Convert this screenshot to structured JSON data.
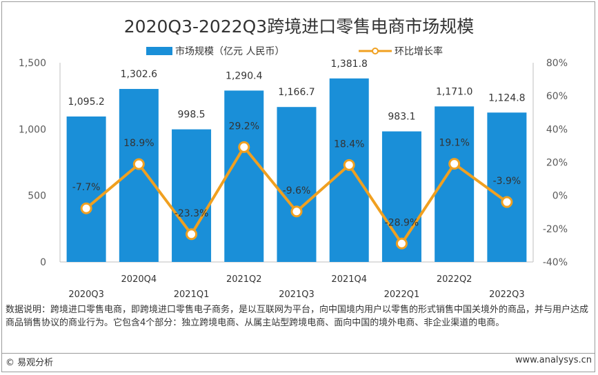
{
  "chart_data": {
    "type": "bar",
    "title": "2020Q3-2022Q3跨境进口零售电商市场规模",
    "categories": [
      "2020Q3",
      "2020Q4",
      "2021Q1",
      "2021Q2",
      "2021Q3",
      "2021Q4",
      "2022Q1",
      "2022Q2",
      "2022Q3"
    ],
    "series": [
      {
        "name": "市场规模（亿元 人民币）",
        "type": "bar",
        "axis": "left",
        "color": "#1a8fd8",
        "values": [
          1095.2,
          1302.6,
          998.5,
          1290.4,
          1166.7,
          1381.8,
          983.1,
          1171.0,
          1124.8
        ],
        "labels": [
          "1,095.2",
          "1,302.6",
          "998.5",
          "1,290.4",
          "1,166.7",
          "1,381.8",
          "983.1",
          "1,171.0",
          "1,124.8"
        ]
      },
      {
        "name": "环比增长率",
        "type": "line",
        "axis": "right",
        "color": "#f0a020",
        "values": [
          -7.7,
          18.9,
          -23.3,
          29.2,
          -9.6,
          18.4,
          -28.9,
          19.1,
          -3.9
        ],
        "labels": [
          "-7.7%",
          "18.9%",
          "-23.3%",
          "29.2%",
          "-9.6%",
          "18.4%",
          "-28.9%",
          "19.1%",
          "-3.9%"
        ]
      }
    ],
    "y_left": {
      "ylim": [
        0,
        1500
      ],
      "ticks": [
        "0",
        "500",
        "1,000",
        "1,500"
      ]
    },
    "y_right": {
      "ylim": [
        -40,
        80
      ],
      "ticks": [
        "-40%",
        "-20%",
        "0%",
        "20%",
        "40%",
        "60%",
        "80%"
      ]
    },
    "legend_position": "top-center",
    "grid": false
  },
  "note": "数据说明：跨境进口零售电商，即跨境进口零售电子商务，是以互联网为平台，向中国境内用户以零售的形式销售中国关境外的商品，并与用户达成商品销售协议的商业行为。它包含4个部分：独立跨境电商、从属主站型跨境电商、面向中国的境外电商、非企业渠道的电商。",
  "copyright": "© 易观分析",
  "website": "www.analysys.cn"
}
